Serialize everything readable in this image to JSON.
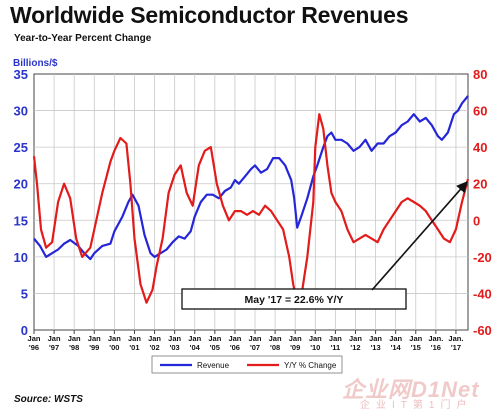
{
  "page": {
    "title": "Worldwide Semiconductor Revenues",
    "subtitle": "Year-to-Year Percent Change",
    "source": "Source: WSTS",
    "watermark": "企业网D1Net",
    "watermark_sub": "企业IT第1门户"
  },
  "colors": {
    "revenue": "#2626d9",
    "yoy": "#e21b1b",
    "left_axis": "#2b35c9",
    "right_axis": "#e21b1b",
    "grid": "#c8c8c8"
  },
  "chart_data": {
    "type": "line",
    "title": "Worldwide Semiconductor Revenues",
    "subtitle": "Year-to-Year Percent Change",
    "ylabel_left": "Billions/$",
    "ylim_left": [
      0,
      35
    ],
    "yticks_left": [
      "0",
      "5",
      "10",
      "15",
      "20",
      "25",
      "30",
      "35"
    ],
    "ylim_right": [
      -60,
      80
    ],
    "yticks_right": [
      "-60",
      "-40",
      "-20",
      "0",
      "20",
      "40",
      "60",
      "80"
    ],
    "x_range": [
      1996.0,
      2017.6
    ],
    "x_tick_months": [
      "Jan",
      "Jan",
      "Jan",
      "Jan",
      "Jan",
      "Jan",
      "Jan",
      "Jan",
      "Jan",
      "Jan",
      "Jan",
      "Jan",
      "Jan",
      "Jan",
      "Jan",
      "Jan",
      "Jan",
      "Jan",
      "Jan",
      "Jan",
      "Jan.",
      "Jan."
    ],
    "x_tick_years": [
      "'96",
      "'97",
      "'98",
      "'99",
      "'00",
      "'01",
      "'02",
      "'03",
      "'04",
      "'05",
      "'06",
      "'07",
      "'08",
      "'09",
      "'10",
      "'11",
      "'12",
      "'13",
      "'14",
      "'15",
      "'16",
      "'17"
    ],
    "grid": true,
    "legend_position": "bottom-center",
    "series": [
      {
        "name": "Revenue",
        "axis": "left",
        "x": [
          1996.0,
          1996.3,
          1996.6,
          1996.9,
          1997.2,
          1997.5,
          1997.8,
          1998.2,
          1998.5,
          1998.8,
          1999.0,
          1999.4,
          1999.8,
          2000.0,
          2000.4,
          2000.7,
          2000.9,
          2001.2,
          2001.5,
          2001.8,
          2002.0,
          2002.3,
          2002.6,
          2002.9,
          2003.2,
          2003.5,
          2003.8,
          2004.0,
          2004.3,
          2004.6,
          2004.9,
          2005.2,
          2005.5,
          2005.8,
          2006.0,
          2006.2,
          2006.5,
          2006.8,
          2007.0,
          2007.3,
          2007.6,
          2007.9,
          2008.2,
          2008.5,
          2008.8,
          2008.95,
          2009.1,
          2009.3,
          2009.6,
          2009.9,
          2010.1,
          2010.4,
          2010.6,
          2010.8,
          2011.0,
          2011.3,
          2011.6,
          2011.9,
          2012.2,
          2012.5,
          2012.8,
          2013.1,
          2013.4,
          2013.7,
          2014.0,
          2014.3,
          2014.6,
          2014.9,
          2015.2,
          2015.5,
          2015.8,
          2016.1,
          2016.3,
          2016.6,
          2016.9,
          2017.1,
          2017.3,
          2017.6
        ],
        "values": [
          12.5,
          11.5,
          10.0,
          10.5,
          11.0,
          11.8,
          12.3,
          11.5,
          10.5,
          9.7,
          10.5,
          11.5,
          11.8,
          13.5,
          15.5,
          17.5,
          18.5,
          17.0,
          13.0,
          10.5,
          10.0,
          10.5,
          11.0,
          12.0,
          12.8,
          12.5,
          13.5,
          15.5,
          17.5,
          18.5,
          18.5,
          18.0,
          19.0,
          19.5,
          20.5,
          20.0,
          21.0,
          22.0,
          22.5,
          21.5,
          22.0,
          23.5,
          23.5,
          22.5,
          20.5,
          18.0,
          14.0,
          15.5,
          18.0,
          21.0,
          22.5,
          25.0,
          26.5,
          27.0,
          26.0,
          26.0,
          25.5,
          24.5,
          25.0,
          26.0,
          24.5,
          25.5,
          25.5,
          26.5,
          27.0,
          28.0,
          28.5,
          29.5,
          28.5,
          29.0,
          28.0,
          26.5,
          26.0,
          27.0,
          29.5,
          30.0,
          31.0,
          32.0
        ]
      },
      {
        "name": "Y/Y % Change",
        "axis": "right",
        "x": [
          1996.0,
          1996.15,
          1996.35,
          1996.6,
          1996.9,
          1997.2,
          1997.5,
          1997.8,
          1998.1,
          1998.4,
          1998.8,
          1999.1,
          1999.4,
          1999.8,
          2000.0,
          2000.3,
          2000.6,
          2000.8,
          2001.0,
          2001.3,
          2001.6,
          2001.9,
          2002.1,
          2002.4,
          2002.7,
          2003.0,
          2003.3,
          2003.6,
          2003.9,
          2004.2,
          2004.5,
          2004.8,
          2005.1,
          2005.4,
          2005.7,
          2006.0,
          2006.3,
          2006.6,
          2006.9,
          2007.2,
          2007.5,
          2007.8,
          2008.1,
          2008.4,
          2008.7,
          2008.9,
          2009.1,
          2009.3,
          2009.6,
          2009.9,
          2010.0,
          2010.2,
          2010.4,
          2010.6,
          2010.8,
          2011.0,
          2011.3,
          2011.6,
          2011.9,
          2012.2,
          2012.5,
          2012.8,
          2013.1,
          2013.4,
          2013.7,
          2014.0,
          2014.3,
          2014.6,
          2014.9,
          2015.2,
          2015.5,
          2015.8,
          2016.1,
          2016.4,
          2016.7,
          2017.0,
          2017.3,
          2017.6
        ],
        "values": [
          35,
          20,
          -5,
          -15,
          -12,
          10,
          20,
          12,
          -10,
          -20,
          -15,
          0,
          15,
          32,
          38,
          45,
          42,
          20,
          -10,
          -35,
          -45,
          -38,
          -25,
          -10,
          15,
          25,
          30,
          15,
          8,
          30,
          38,
          40,
          20,
          8,
          0,
          5,
          5,
          3,
          5,
          3,
          8,
          5,
          0,
          -5,
          -20,
          -35,
          -45,
          -42,
          -20,
          10,
          40,
          58,
          50,
          30,
          15,
          10,
          5,
          -5,
          -12,
          -10,
          -8,
          -10,
          -12,
          -5,
          0,
          5,
          10,
          12,
          10,
          8,
          5,
          0,
          -5,
          -10,
          -12,
          -5,
          10,
          22.6
        ]
      }
    ],
    "annotation": "May '17 = 22.6% Y/Y"
  }
}
